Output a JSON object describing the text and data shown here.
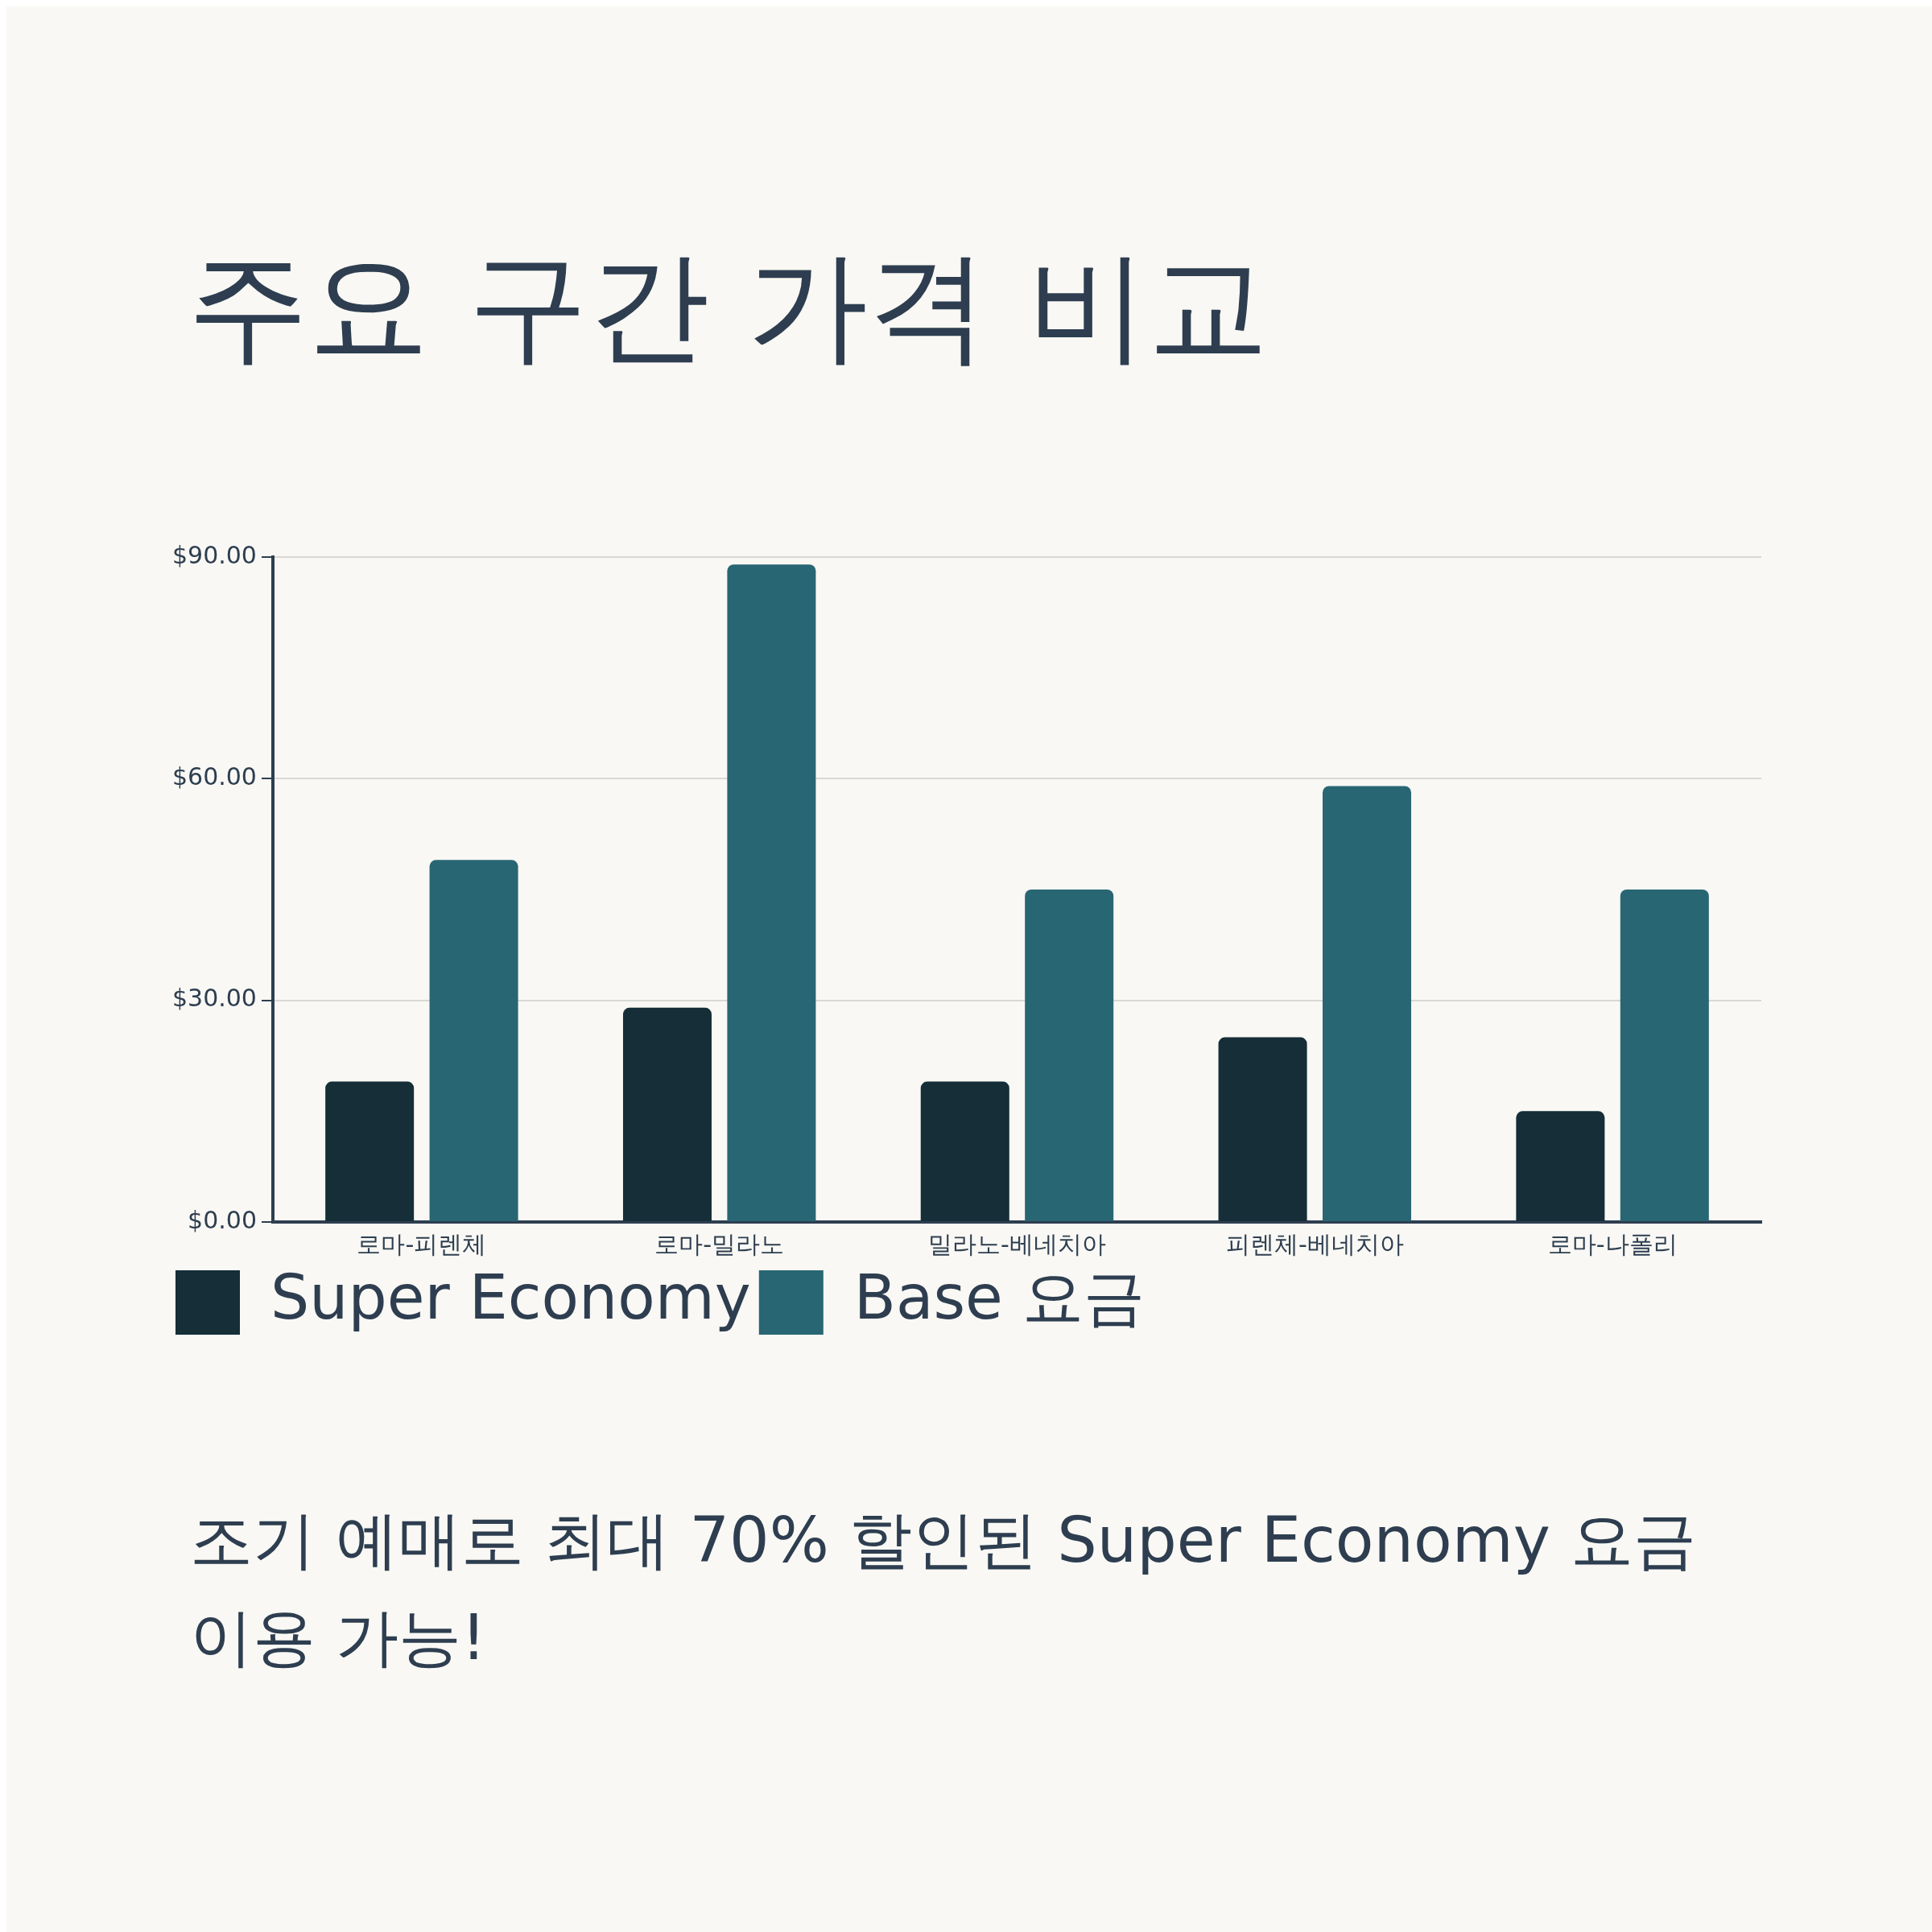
{
  "chart_data": {
    "type": "bar",
    "title": "주요 구간 가격 비교",
    "categories": [
      "로마-피렌체",
      "로마-밀라노",
      "밀라노-베네치아",
      "피렌체-베네치아",
      "로마-나폴리"
    ],
    "series": [
      {
        "name": "Super Economy",
        "color": "#152e37",
        "values": [
          19,
          29,
          19,
          25,
          15
        ]
      },
      {
        "name": "Base 요금",
        "color": "#296674",
        "values": [
          49,
          89,
          45,
          59,
          45
        ]
      }
    ],
    "ylim": [
      0,
      90
    ],
    "yticks": [
      {
        "value": 0,
        "label": "$0.00"
      },
      {
        "value": 30,
        "label": "$30.00"
      },
      {
        "value": 60,
        "label": "$60.00"
      },
      {
        "value": 90,
        "label": "$90.00"
      }
    ],
    "grid": "y",
    "legend": "bottom",
    "annotations": [
      "조기 예매로 최대 70% 할인된 Super Economy 요금 이용 가능!"
    ]
  }
}
